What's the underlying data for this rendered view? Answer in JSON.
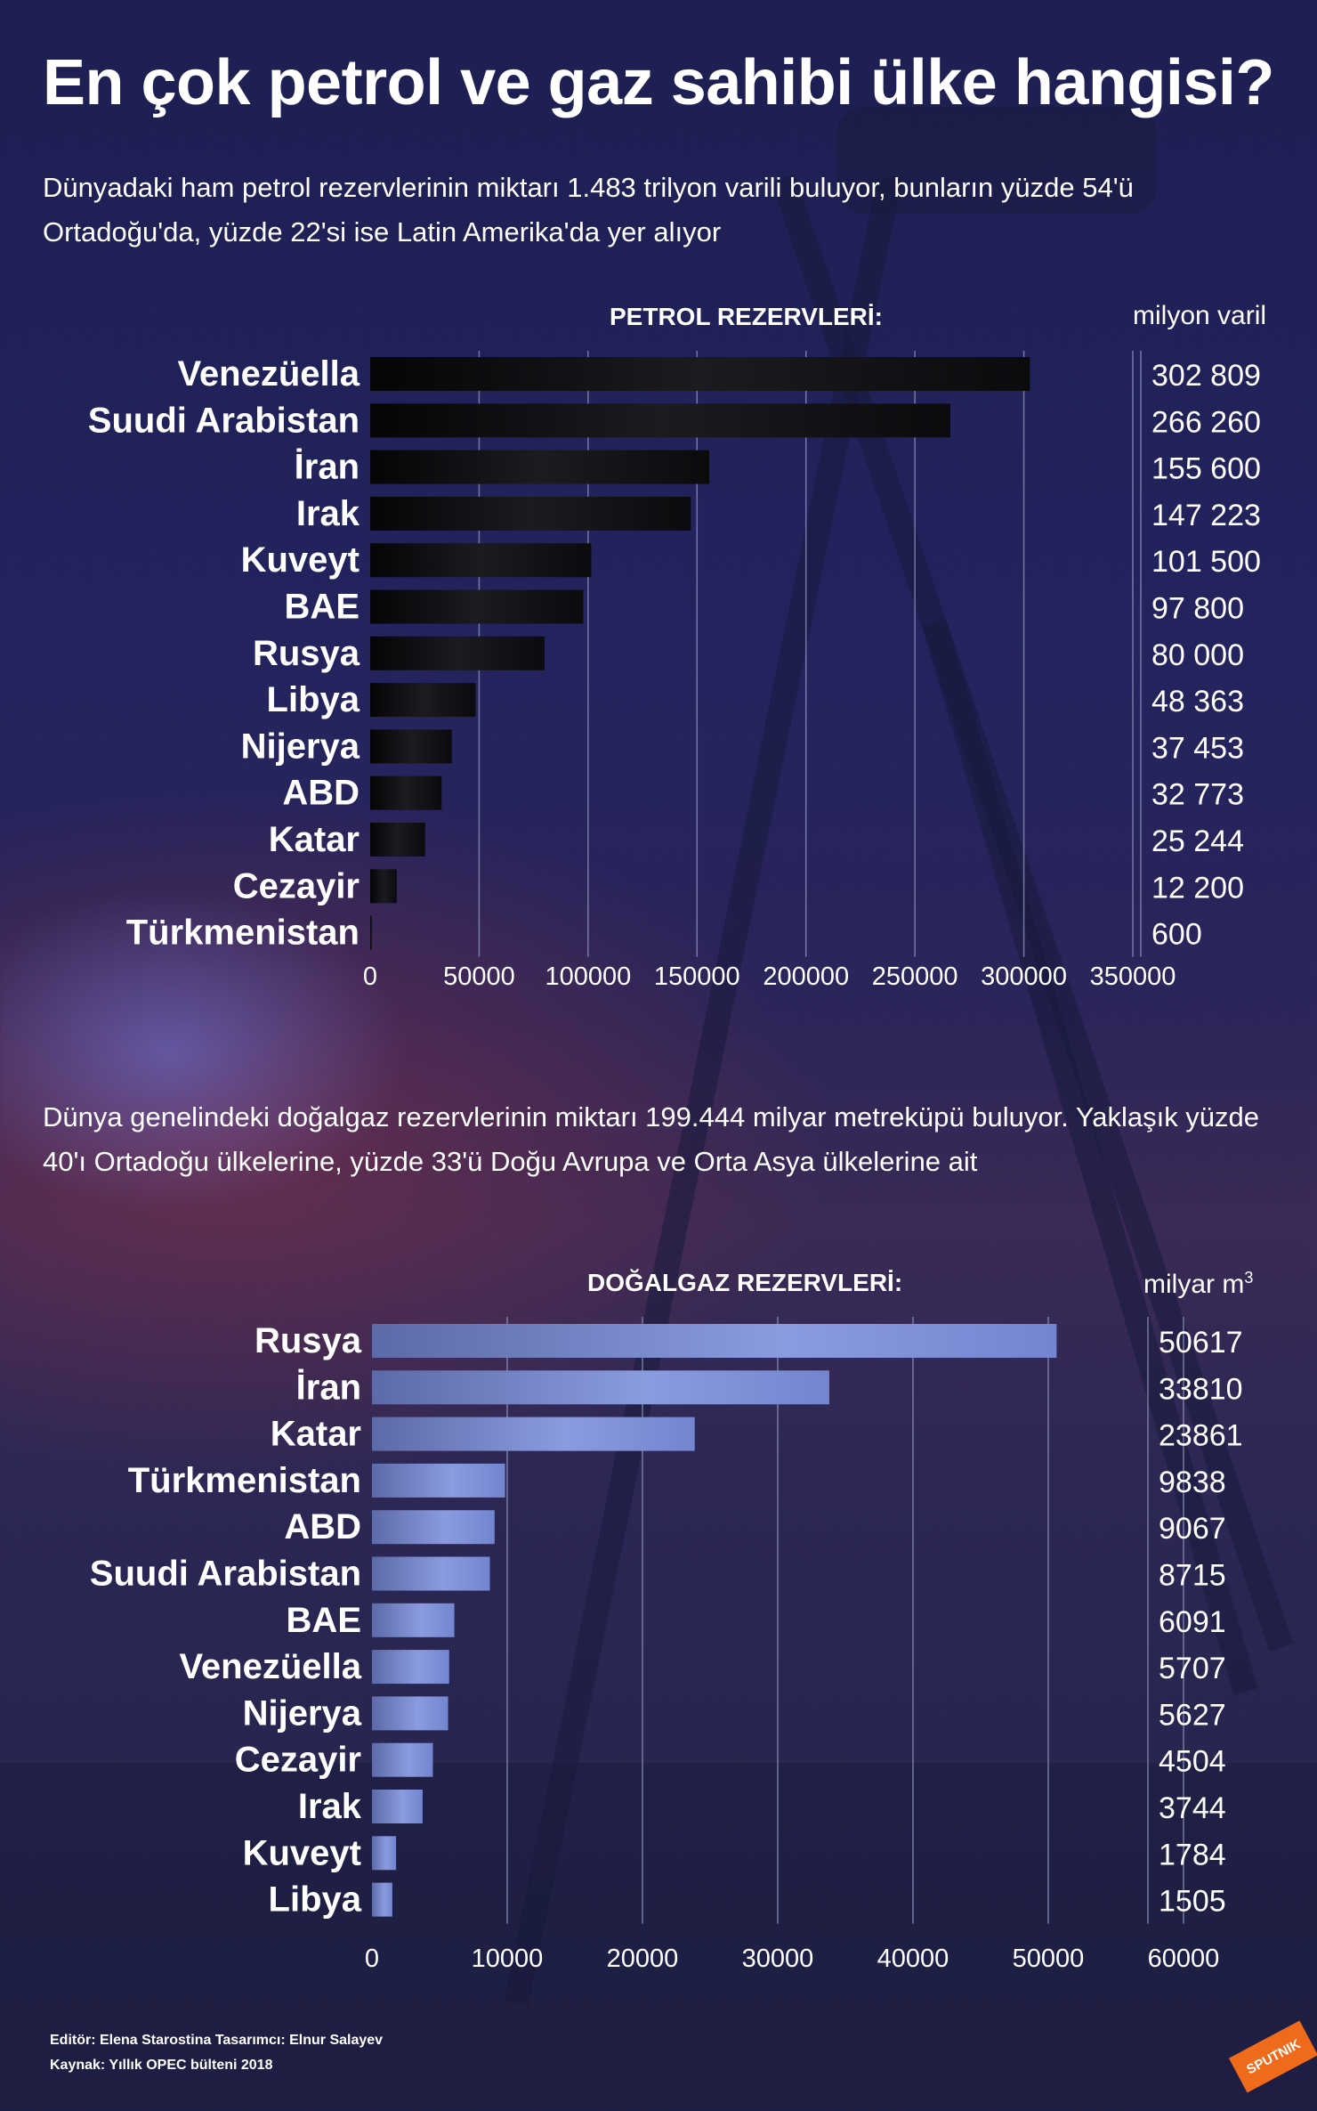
{
  "title": "En çok petrol ve gaz sahibi ülke hangisi?",
  "oil_intro": "Dünyadaki ham petrol rezervlerinin miktarı 1.483 trilyon varili buluyor, bunların yüzde 54'ü Ortadoğu'da, yüzde 22'si ise Latin Amerika'da yer alıyor",
  "gas_intro": "Dünya genelindeki doğalgaz rezervlerinin miktarı 199.444 milyar metreküpü buluyor. Yaklaşık yüzde 40'ı Ortadoğu ülkelerine, yüzde 33'ü Doğu Avrupa ve Orta Asya ülkelerine ait",
  "oil_heading": "PETROL REZERVLERİ:",
  "oil_unit": "milyon varil",
  "gas_heading": "DOĞALGAZ REZERVLERİ:",
  "gas_unit": "milyar m",
  "gas_unit_sup": "3",
  "footer": {
    "credits": "Editör: Elena Starostina  Tasarımcı: Elnur Salayev",
    "source": "Kaynak: Yıllık OPEC bülteni 2018"
  },
  "logo_text": "SPUTNIK",
  "colors": {
    "oil_bar": "#121215",
    "gas_bar": "#7f8fd6",
    "grid": "#8a8eb8"
  },
  "chart_data": [
    {
      "type": "bar",
      "orientation": "horizontal",
      "categories": [
        "Venezüella",
        "Suudi Arabistan",
        "İran",
        "Irak",
        "Kuveyt",
        "BAE",
        "Rusya",
        "Libya",
        "Nijerya",
        "ABD",
        "Katar",
        "Cezayir",
        "Türkmenistan"
      ],
      "values": [
        302809,
        266260,
        155600,
        147223,
        101500,
        97800,
        80000,
        48363,
        37453,
        32773,
        25244,
        12200,
        600
      ],
      "value_labels": [
        "302 809",
        "266 260",
        "155 600",
        "147 223",
        "101 500",
        "97 800",
        "80 000",
        "48 363",
        "37 453",
        "32 773",
        "25 244",
        "12 200",
        "600"
      ],
      "xlim": [
        0,
        350000
      ],
      "xticks": [
        0,
        50000,
        100000,
        150000,
        200000,
        250000,
        300000,
        350000
      ],
      "xtick_labels": [
        "0",
        "50000",
        "100000",
        "150000",
        "200000",
        "250000",
        "300000",
        "350000"
      ],
      "grid": true
    },
    {
      "type": "bar",
      "orientation": "horizontal",
      "categories": [
        "Rusya",
        "İran",
        "Katar",
        "Türkmenistan",
        "ABD",
        "Suudi Arabistan",
        "BAE",
        "Venezüella",
        "Nijerya",
        "Cezayir",
        "Irak",
        "Kuveyt",
        "Libya"
      ],
      "values": [
        50617,
        33810,
        23861,
        9838,
        9067,
        8715,
        6091,
        5707,
        5627,
        4504,
        3744,
        1784,
        1505
      ],
      "value_labels": [
        "50617",
        "33810",
        "23861",
        "9838",
        "9067",
        "8715",
        "6091",
        "5707",
        "5627",
        "4504",
        "3744",
        "1784",
        "1505"
      ],
      "xlim": [
        0,
        60000
      ],
      "xticks": [
        0,
        10000,
        20000,
        30000,
        40000,
        50000,
        60000
      ],
      "xtick_labels": [
        "0",
        "10000",
        "20000",
        "30000",
        "40000",
        "50000",
        "60000"
      ],
      "grid": true
    }
  ]
}
